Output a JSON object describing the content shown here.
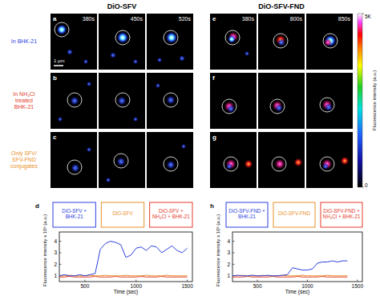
{
  "columns": [
    {
      "title": "DiO-SFV",
      "times": [
        "380s",
        "450s",
        "520s"
      ]
    },
    {
      "title": "DiO-SFV-FND",
      "times": [
        "380s",
        "800s",
        "850s"
      ]
    }
  ],
  "rows": [
    {
      "label": "In BHK-21",
      "color": "#2d3fe0"
    },
    {
      "label": "In NH₄Cl treated BHK-21",
      "color": "#e53a2a"
    },
    {
      "label": "Only SFV/ SFV-FND conjugates",
      "color": "#e8902a"
    }
  ],
  "panel_letters": [
    [
      "a",
      "b",
      "c"
    ],
    [
      "e",
      "f",
      "g"
    ]
  ],
  "scale_bar": "1 μm",
  "colorbar": {
    "range": [
      0,
      5000
    ],
    "ticks": [
      {
        "value": 0,
        "label": "0"
      },
      {
        "value": 5000,
        "label": "5K"
      }
    ],
    "label": "Fluorescence intensity (a.u.)"
  },
  "chart_panels": [
    "d",
    "h"
  ],
  "chart_data": [
    {
      "type": "line",
      "x_label": "Time (sec)",
      "y_label": "Fluorescence intensity x 10³ (a.u.)",
      "legend": "top",
      "x": [
        250,
        300,
        350,
        400,
        450,
        500,
        550,
        600,
        650,
        700,
        750,
        800,
        850,
        900,
        950,
        1000,
        1050,
        1100,
        1150,
        1200,
        1250,
        1300,
        1350,
        1400,
        1450,
        1500
      ],
      "xlim": [
        250,
        1550
      ],
      "xticks": [
        500,
        1000,
        1500
      ],
      "ylim": [
        0.5,
        4.8
      ],
      "yticks": [
        1,
        2,
        3,
        4
      ],
      "series": [
        {
          "name": "DiO-SFV + BHK-21",
          "color": "#2d3fe0",
          "values": [
            1.0,
            1.1,
            1.0,
            1.0,
            1.1,
            1.0,
            1.1,
            1.2,
            3.3,
            3.8,
            4.0,
            3.9,
            3.7,
            2.6,
            2.8,
            3.4,
            3.5,
            3.2,
            3.6,
            3.5,
            3.0,
            3.3,
            3.6,
            3.2,
            3.0,
            3.4
          ]
        },
        {
          "name": "DiO-SFV",
          "color": "#e8902a",
          "values": [
            1.0,
            1.0,
            1.05,
            1.0,
            1.0,
            1.0,
            1.05,
            1.0,
            1.0,
            1.05,
            1.0,
            1.0,
            1.0,
            1.05,
            1.0,
            1.0,
            1.0,
            1.05,
            1.0,
            1.0,
            1.0,
            1.05,
            1.0,
            1.0,
            1.0,
            1.0
          ]
        },
        {
          "name": "DiO-SFV + NH₄Cl + BHK-21",
          "color": "#e53a2a",
          "values": [
            0.9,
            0.9,
            0.95,
            0.9,
            0.9,
            0.9,
            0.9,
            0.95,
            0.9,
            0.9,
            0.9,
            0.95,
            0.9,
            0.9,
            0.9,
            0.9,
            0.95,
            0.9,
            0.9,
            0.9,
            0.95,
            0.9,
            0.9,
            0.9,
            0.9,
            0.9
          ]
        }
      ]
    },
    {
      "type": "line",
      "x_label": "Time (sec)",
      "y_label": "Fluorescence intensity x 10³ (a.u.)",
      "legend": "top",
      "x": [
        250,
        300,
        350,
        400,
        450,
        500,
        550,
        600,
        650,
        700,
        750,
        800,
        850,
        900,
        950,
        1000,
        1050,
        1100,
        1150,
        1200,
        1250,
        1300,
        1350,
        1400
      ],
      "xlim": [
        250,
        1550
      ],
      "xticks": [
        500,
        1000,
        1500
      ],
      "ylim": [
        0.5,
        4.8
      ],
      "yticks": [
        1,
        2,
        3,
        4
      ],
      "series": [
        {
          "name": "DiO-SFV-FND + BHK-21",
          "color": "#2d3fe0",
          "values": [
            1.0,
            1.05,
            1.0,
            1.0,
            1.05,
            1.0,
            1.0,
            1.05,
            1.0,
            1.0,
            1.05,
            1.1,
            1.7,
            1.6,
            1.5,
            1.5,
            1.6,
            2.1,
            2.2,
            2.2,
            2.3,
            2.2,
            2.3,
            2.3
          ]
        },
        {
          "name": "DiO-SFV-FND",
          "color": "#e8902a",
          "values": [
            1.0,
            1.0,
            1.05,
            1.0,
            1.0,
            1.0,
            1.05,
            1.0,
            1.0,
            1.0,
            1.05,
            1.0,
            1.0,
            1.0,
            1.05,
            1.0,
            1.0,
            1.0,
            1.0,
            1.05,
            1.0,
            1.0,
            1.0,
            1.0
          ]
        },
        {
          "name": "DiO-SFV-FND + NH₄Cl + BHK-21",
          "color": "#e53a2a",
          "values": [
            0.9,
            0.9,
            0.9,
            0.95,
            0.9,
            0.9,
            0.9,
            0.9,
            0.95,
            0.9,
            0.9,
            0.9,
            0.9,
            0.95,
            0.9,
            0.9,
            0.9,
            0.9,
            0.95,
            0.9,
            0.9,
            0.9,
            0.9,
            0.9
          ]
        }
      ]
    }
  ]
}
